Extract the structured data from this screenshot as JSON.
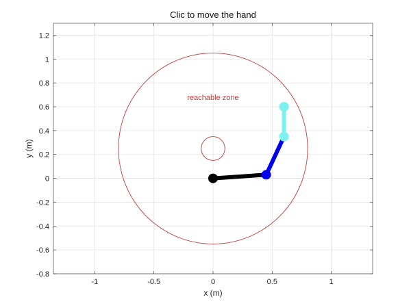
{
  "chart_data": {
    "type": "line",
    "title": "Clic to move the hand",
    "xlabel": "x (m)",
    "ylabel": "y (m)",
    "xlim": [
      -1.35,
      1.35
    ],
    "ylim": [
      -0.8,
      1.3
    ],
    "xticks": [
      -1,
      -0.5,
      0,
      0.5,
      1
    ],
    "xtick_labels": [
      "-1",
      "-0.5",
      "0",
      "0.5",
      "1"
    ],
    "yticks": [
      -0.8,
      -0.6,
      -0.4,
      -0.2,
      0,
      0.2,
      0.4,
      0.6,
      0.8,
      1,
      1.2
    ],
    "ytick_labels": [
      "-0.8",
      "-0.6",
      "-0.4",
      "-0.2",
      "0",
      "0.2",
      "0.4",
      "0.6",
      "0.8",
      "1",
      "1.2"
    ],
    "grid": true,
    "annotation": {
      "text": "reachable zone",
      "x": 0,
      "y": 0.68,
      "color": "#c0393b"
    },
    "circles": [
      {
        "name": "outer",
        "cx": 0,
        "cy": 0.25,
        "r": 0.8,
        "color": "#c0393b"
      },
      {
        "name": "inner",
        "cx": 0,
        "cy": 0.25,
        "r": 0.1,
        "color": "#c0393b"
      }
    ],
    "series": [
      {
        "color": "#000000",
        "x": [
          0,
          0.45
        ],
        "y": [
          0,
          0.03
        ]
      },
      {
        "color": "#0000ee",
        "x": [
          0.45,
          0.6
        ],
        "y": [
          0.03,
          0.35
        ]
      },
      {
        "color": "#7ff0f0",
        "x": [
          0.6,
          0.6
        ],
        "y": [
          0.35,
          0.6
        ]
      }
    ],
    "joints": [
      {
        "x": 0,
        "y": 0,
        "color": "#000000"
      },
      {
        "x": 0.45,
        "y": 0.03,
        "color": "#0000ee"
      },
      {
        "x": 0.6,
        "y": 0.35,
        "color": "#7ff0f0"
      },
      {
        "x": 0.6,
        "y": 0.6,
        "color": "#7ff0f0"
      }
    ]
  }
}
